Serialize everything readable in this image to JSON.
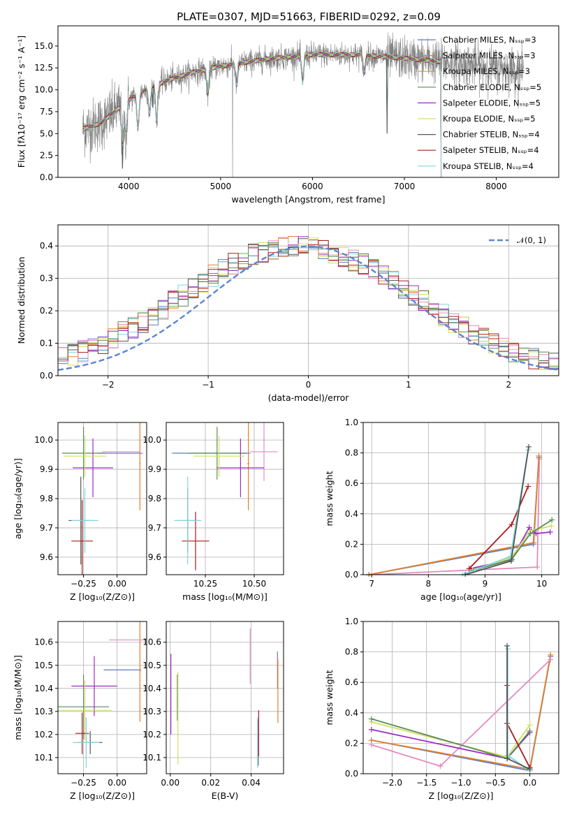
{
  "figure": {
    "title": "PLATE=0307, MJD=51663, FIBERID=0292, z=0.09"
  },
  "chart_data": [
    {
      "id": "spectrum",
      "type": "line",
      "xlabel": "wavelength [Angstrom, rest frame]",
      "ylabel": "Flux [fλ10⁻¹⁷ erg cm⁻² s⁻¹ A⁻¹]",
      "xlim": [
        3230,
        8680
      ],
      "ylim": [
        0,
        17.3
      ],
      "xticks": [
        4000,
        5000,
        6000,
        7000,
        8000
      ],
      "yticks": [
        0.0,
        2.5,
        5.0,
        7.5,
        10.0,
        12.5,
        15.0
      ],
      "ytick_labels": [
        "0.0",
        "2.5",
        "5.0",
        "7.5",
        "10.0",
        "12.5",
        "15.0"
      ],
      "grid": false,
      "legend_position": "right",
      "data_x_range": [
        3500,
        8300
      ],
      "models_end": 7400,
      "continuum": [
        [
          3500,
          5.5
        ],
        [
          3700,
          6.2
        ],
        [
          3900,
          8.0
        ],
        [
          4100,
          9.6
        ],
        [
          4400,
          11.0
        ],
        [
          4700,
          12.0
        ],
        [
          5000,
          12.7
        ],
        [
          5500,
          13.5
        ],
        [
          6000,
          14.0
        ],
        [
          6500,
          14.0
        ],
        [
          7000,
          13.6
        ],
        [
          7400,
          13.2
        ],
        [
          8000,
          12.5
        ],
        [
          8300,
          12.3
        ]
      ],
      "absorption_features": [
        [
          3934,
          4.5
        ],
        [
          3970,
          3.5
        ],
        [
          4101,
          4.0
        ],
        [
          4227,
          3.0
        ],
        [
          4304,
          4.0
        ],
        [
          4861,
          3.0
        ],
        [
          5175,
          2.5
        ],
        [
          5893,
          3.0
        ],
        [
          6563,
          2.0
        ]
      ],
      "observed_drop_x": 5130,
      "model_drops": [
        [
          3930,
          1
        ],
        [
          4260,
          8
        ],
        [
          6810,
          5
        ],
        [
          7420,
          0
        ]
      ],
      "series": [
        {
          "name": "Chabrier MILES, Nₛₛₚ=3",
          "color": "#5b7ec4"
        },
        {
          "name": "Salpeter MILES, Nₛₛₚ=3",
          "color": "#e5802a"
        },
        {
          "name": "Kroupa MILES, Nₛₛₚ=3",
          "color": "#d6a020"
        },
        {
          "name": "Chabrier ELODIE, Nₛₛₚ=5",
          "color": "#5a8a5a"
        },
        {
          "name": "Salpeter ELODIE, Nₛₛₚ=5",
          "color": "#9a2bc0"
        },
        {
          "name": "Kroupa ELODIE, Nₛₛₚ=5",
          "color": "#d0e060"
        },
        {
          "name": "Chabrier STELIB, Nₛₛₚ=4",
          "color": "#555555"
        },
        {
          "name": "Salpeter STELIB, Nₛₛₚ=4",
          "color": "#b01818"
        },
        {
          "name": "Kroupa STELIB, Nₛₛₚ=4",
          "color": "#7ed6de"
        }
      ]
    },
    {
      "id": "residuals",
      "type": "bar",
      "xlabel": "(data-model)/error",
      "ylabel": "Normed distribution",
      "xlim": [
        -2.5,
        2.5
      ],
      "ylim": [
        0,
        0.465
      ],
      "xticks": [
        -2,
        -1,
        0,
        1,
        2
      ],
      "xtick_labels": [
        "−2",
        "−1",
        "0",
        "1",
        "2"
      ],
      "yticks": [
        0.0,
        0.1,
        0.2,
        0.3,
        0.4
      ],
      "ytick_labels": [
        "0.0",
        "0.1",
        "0.2",
        "0.3",
        "0.4"
      ],
      "grid": true,
      "legend_position": "top-right",
      "normal_label": "𝒩(0, 1)",
      "normal_color": "#5b84d6",
      "bin_width": 0.1,
      "hist_colors": [
        "#5b7ec4",
        "#e5802a",
        "#7ed6de",
        "#555555",
        "#9a2bc0",
        "#d0e060",
        "#e589c0",
        "#b01818",
        "#5a8a5a"
      ]
    },
    {
      "id": "z-age",
      "type": "scatter",
      "xlabel": "Z [log₁₀(Z/Z⊙)]",
      "ylabel": "age  [log₁₀(age/yr)]",
      "xlim": [
        -0.44,
        0.22
      ],
      "ylim": [
        9.54,
        10.06
      ],
      "xticks": [
        -0.25,
        0.0
      ],
      "xtick_labels": [
        "−0.25",
        "0.00"
      ],
      "yticks": [
        9.6,
        9.7,
        9.8,
        9.9,
        10.0
      ],
      "ytick_labels": [
        "9.6",
        "9.7",
        "9.8",
        "9.9",
        "10.0"
      ],
      "grid": true,
      "crosses": [
        {
          "x": 0.02,
          "xerr": 0.17,
          "y": 9.955,
          "yerr": 0.0,
          "color": "#5b7ec4"
        },
        {
          "x": 0.17,
          "xerr": 0.005,
          "y": 9.92,
          "yerr": 0.16,
          "color": "#e5802a"
        },
        {
          "x": 0.03,
          "xerr": 0.14,
          "y": 9.96,
          "yerr": 0.0,
          "color": "#e589c0"
        },
        {
          "x": -0.25,
          "xerr": 0.16,
          "y": 9.955,
          "yerr": 0.09,
          "color": "#5a8a5a"
        },
        {
          "x": -0.18,
          "xerr": 0.15,
          "y": 9.905,
          "yerr": 0.1,
          "color": "#9a2bc0"
        },
        {
          "x": -0.24,
          "xerr": 0.16,
          "y": 9.945,
          "yerr": 0.07,
          "color": "#d0e060"
        },
        {
          "x": -0.27,
          "xerr": 0.09,
          "y": 9.725,
          "yerr": 0.15,
          "color": "#555555"
        },
        {
          "x": -0.26,
          "xerr": 0.08,
          "y": 9.655,
          "yerr": 0.14,
          "color": "#b01818"
        },
        {
          "x": -0.24,
          "xerr": 0.1,
          "y": 9.725,
          "yerr": 0.11,
          "color": "#7ed6de"
        }
      ]
    },
    {
      "id": "mass-age",
      "type": "scatter",
      "xlabel": "mass [log₁₀(M/M⊙)]",
      "ylabel": "",
      "xlim": [
        10.05,
        10.65
      ],
      "ylim": [
        9.54,
        10.06
      ],
      "xticks": [
        10.25,
        10.5
      ],
      "xtick_labels": [
        "10.25",
        "10.50"
      ],
      "yticks": [
        9.6,
        9.7,
        9.8,
        9.9,
        10.0
      ],
      "ytick_labels": [
        "9.6",
        "9.7",
        "9.8",
        "9.9",
        "10.0"
      ],
      "grid": true,
      "crosses": [
        {
          "x": 10.28,
          "xerr": 0.2,
          "y": 9.955,
          "yerr": 0.0,
          "color": "#5b7ec4"
        },
        {
          "x": 10.47,
          "xerr": 0.005,
          "y": 9.92,
          "yerr": 0.16,
          "color": "#e5802a"
        },
        {
          "x": 10.55,
          "xerr": 0.07,
          "y": 9.96,
          "yerr": 0.1,
          "color": "#e589c0"
        },
        {
          "x": 10.31,
          "xerr": 0.15,
          "y": 9.955,
          "yerr": 0.09,
          "color": "#5a8a5a"
        },
        {
          "x": 10.43,
          "xerr": 0.12,
          "y": 9.905,
          "yerr": 0.1,
          "color": "#9a2bc0"
        },
        {
          "x": 10.32,
          "xerr": 0.13,
          "y": 9.945,
          "yerr": 0.07,
          "color": "#d0e060"
        },
        {
          "x": 10.16,
          "xerr": 0.06,
          "y": 9.725,
          "yerr": 0.11,
          "color": "#555555"
        },
        {
          "x": 10.2,
          "xerr": 0.07,
          "y": 9.655,
          "yerr": 0.1,
          "color": "#b01818"
        },
        {
          "x": 10.16,
          "xerr": 0.07,
          "y": 9.725,
          "yerr": 0.15,
          "color": "#7ed6de"
        }
      ]
    },
    {
      "id": "age-weight",
      "type": "line",
      "xlabel": "age  [log₁₀(age/yr)]",
      "ylabel": "mass weight",
      "xlim": [
        6.85,
        10.3
      ],
      "ylim": [
        0,
        1.0
      ],
      "xticks": [
        7,
        8,
        9,
        10
      ],
      "yticks": [
        0.0,
        0.2,
        0.4,
        0.6,
        0.8,
        1.0
      ],
      "ytick_labels": [
        "0.0",
        "0.2",
        "0.4",
        "0.6",
        "0.8",
        "1.0"
      ],
      "grid": true,
      "series": [
        {
          "color": "#e589c0",
          "points": [
            [
              6.95,
              0.0
            ],
            [
              9.92,
              0.05
            ],
            [
              9.96,
              0.76
            ]
          ]
        },
        {
          "color": "#5b7ec4",
          "points": [
            [
              6.95,
              0.0
            ],
            [
              9.85,
              0.2
            ],
            [
              9.95,
              0.77
            ]
          ]
        },
        {
          "color": "#e5802a",
          "points": [
            [
              6.95,
              0.0
            ],
            [
              9.86,
              0.21
            ],
            [
              9.95,
              0.78
            ]
          ]
        },
        {
          "color": "#9a2bc0",
          "points": [
            [
              8.75,
              0.04
            ],
            [
              9.47,
              0.1
            ],
            [
              9.78,
              0.31
            ],
            [
              9.9,
              0.27
            ],
            [
              10.15,
              0.28
            ]
          ]
        },
        {
          "color": "#d0e060",
          "points": [
            [
              8.78,
              0.03
            ],
            [
              9.46,
              0.11
            ],
            [
              9.8,
              0.29
            ],
            [
              10.17,
              0.32
            ]
          ]
        },
        {
          "color": "#5a8a5a",
          "points": [
            [
              8.8,
              0.03
            ],
            [
              9.47,
              0.1
            ],
            [
              9.8,
              0.27
            ],
            [
              10.18,
              0.36
            ]
          ]
        },
        {
          "color": "#b01818",
          "points": [
            [
              8.72,
              0.04
            ],
            [
              9.47,
              0.33
            ],
            [
              9.76,
              0.58
            ]
          ]
        },
        {
          "color": "#7ed6de",
          "points": [
            [
              8.6,
              0.0
            ],
            [
              9.45,
              0.12
            ],
            [
              9.76,
              0.82
            ]
          ]
        },
        {
          "color": "#555555",
          "points": [
            [
              8.65,
              0.0
            ],
            [
              9.46,
              0.09
            ],
            [
              9.77,
              0.84
            ]
          ]
        }
      ]
    },
    {
      "id": "z-mass",
      "type": "scatter",
      "xlabel": "Z [log₁₀(Z/Z⊙)]",
      "ylabel": "mass [log₁₀(M/M⊙)]",
      "xlim": [
        -0.44,
        0.22
      ],
      "ylim": [
        10.03,
        10.69
      ],
      "xticks": [
        -0.25,
        0.0
      ],
      "xtick_labels": [
        "−0.25",
        "0.00"
      ],
      "yticks": [
        10.1,
        10.2,
        10.3,
        10.4,
        10.5,
        10.6
      ],
      "ytick_labels": [
        "10.1",
        "10.2",
        "10.3",
        "10.4",
        "10.5",
        "10.6"
      ],
      "grid": true,
      "crosses": [
        {
          "x": 0.04,
          "xerr": 0.14,
          "y": 10.48,
          "yerr": 0.0,
          "color": "#5b7ec4"
        },
        {
          "x": 0.17,
          "xerr": 0.005,
          "y": 10.475,
          "yerr": 0.22,
          "color": "#e5802a"
        },
        {
          "x": 0.08,
          "xerr": 0.14,
          "y": 10.61,
          "yerr": 0.0,
          "color": "#e589c0"
        },
        {
          "x": -0.25,
          "xerr": 0.19,
          "y": 10.32,
          "yerr": 0.14,
          "color": "#5a8a5a"
        },
        {
          "x": -0.17,
          "xerr": 0.17,
          "y": 10.41,
          "yerr": 0.13,
          "color": "#9a2bc0"
        },
        {
          "x": -0.24,
          "xerr": 0.2,
          "y": 10.305,
          "yerr": 0.13,
          "color": "#d0e060"
        },
        {
          "x": -0.2,
          "xerr": 0.09,
          "y": 10.165,
          "yerr": 0.05,
          "color": "#555555"
        },
        {
          "x": -0.26,
          "xerr": 0.05,
          "y": 10.205,
          "yerr": 0.09,
          "color": "#b01818"
        },
        {
          "x": -0.23,
          "xerr": 0.1,
          "y": 10.165,
          "yerr": 0.11,
          "color": "#7ed6de"
        }
      ]
    },
    {
      "id": "ebv-mass",
      "type": "scatter",
      "xlabel": "E(B-V)",
      "ylabel": "",
      "xlim": [
        -0.002,
        0.056
      ],
      "ylim": [
        10.03,
        10.69
      ],
      "xticks": [
        0.0,
        0.02,
        0.04
      ],
      "xtick_labels": [
        "0.00",
        "0.02",
        "0.04"
      ],
      "yticks": [
        10.1,
        10.2,
        10.3,
        10.4,
        10.5,
        10.6
      ],
      "ytick_labels": [
        "10.1",
        "10.2",
        "10.3",
        "10.4",
        "10.5",
        "10.6"
      ],
      "grid": true,
      "crosses": [
        {
          "x": 0.053,
          "xerr": 0.0,
          "y": 10.48,
          "yerr": 0.08,
          "color": "#5b7ec4"
        },
        {
          "x": 0.0532,
          "xerr": 0.0,
          "y": 10.39,
          "yerr": 0.14,
          "color": "#e5802a"
        },
        {
          "x": 0.0395,
          "xerr": 0.0,
          "y": 10.54,
          "yerr": 0.12,
          "color": "#e589c0"
        },
        {
          "x": 0.0035,
          "xerr": 0.0,
          "y": 10.36,
          "yerr": 0.1,
          "color": "#5a8a5a"
        },
        {
          "x": 0.0003,
          "xerr": 0.0,
          "y": 10.375,
          "yerr": 0.175,
          "color": "#9a2bc0"
        },
        {
          "x": 0.0038,
          "xerr": 0.0,
          "y": 10.27,
          "yerr": 0.2,
          "color": "#d0e060"
        },
        {
          "x": 0.0435,
          "xerr": 0.0,
          "y": 10.165,
          "yerr": 0.1,
          "color": "#555555"
        },
        {
          "x": 0.0437,
          "xerr": 0.0,
          "y": 10.205,
          "yerr": 0.1,
          "color": "#b01818"
        },
        {
          "x": 0.0432,
          "xerr": 0.0,
          "y": 10.165,
          "yerr": 0.11,
          "color": "#7ed6de"
        }
      ]
    },
    {
      "id": "z-weight",
      "type": "line",
      "xlabel": "Z [log₁₀(Z/Z⊙)]",
      "ylabel": "mass weight",
      "xlim": [
        -2.42,
        0.42
      ],
      "ylim": [
        0,
        1.0
      ],
      "xticks": [
        -2.0,
        -1.5,
        -1.0,
        -0.5,
        0.0
      ],
      "xtick_labels": [
        "−2.0",
        "−1.5",
        "−1.0",
        "−0.5",
        "0.0"
      ],
      "yticks": [
        0.0,
        0.2,
        0.4,
        0.6,
        0.8,
        1.0
      ],
      "ytick_labels": [
        "0.0",
        "0.2",
        "0.4",
        "0.6",
        "0.8",
        "1.0"
      ],
      "grid": true,
      "series": [
        {
          "color": "#5b7ec4",
          "points": [
            [
              -2.3,
              0.22
            ],
            [
              0.0,
              0.02
            ],
            [
              0.3,
              0.77
            ]
          ]
        },
        {
          "color": "#e5802a",
          "points": [
            [
              -2.3,
              0.22
            ],
            [
              0.0,
              0.03
            ],
            [
              0.3,
              0.78
            ]
          ]
        },
        {
          "color": "#e589c0",
          "points": [
            [
              -2.3,
              0.19
            ],
            [
              -1.3,
              0.05
            ],
            [
              0.3,
              0.75
            ]
          ]
        },
        {
          "color": "#9a2bc0",
          "points": [
            [
              -2.3,
              0.29
            ],
            [
              -0.33,
              0.1
            ],
            [
              0.0,
              0.27
            ]
          ]
        },
        {
          "color": "#d0e060",
          "points": [
            [
              -2.3,
              0.34
            ],
            [
              -0.33,
              0.11
            ],
            [
              0.0,
              0.32
            ]
          ]
        },
        {
          "color": "#5a8a5a",
          "points": [
            [
              -2.3,
              0.36
            ],
            [
              -0.33,
              0.1
            ],
            [
              0.0,
              0.28
            ]
          ]
        },
        {
          "color": "#b01818",
          "points": [
            [
              -0.33,
              0.58
            ],
            [
              -0.33,
              0.33
            ],
            [
              0.0,
              0.04
            ]
          ]
        },
        {
          "color": "#7ed6de",
          "points": [
            [
              -0.32,
              0.82
            ],
            [
              -0.32,
              0.12
            ],
            [
              0.0,
              0.02
            ]
          ]
        },
        {
          "color": "#555555",
          "points": [
            [
              -0.33,
              0.84
            ],
            [
              -0.33,
              0.1
            ],
            [
              0.0,
              0.03
            ]
          ]
        }
      ]
    }
  ]
}
